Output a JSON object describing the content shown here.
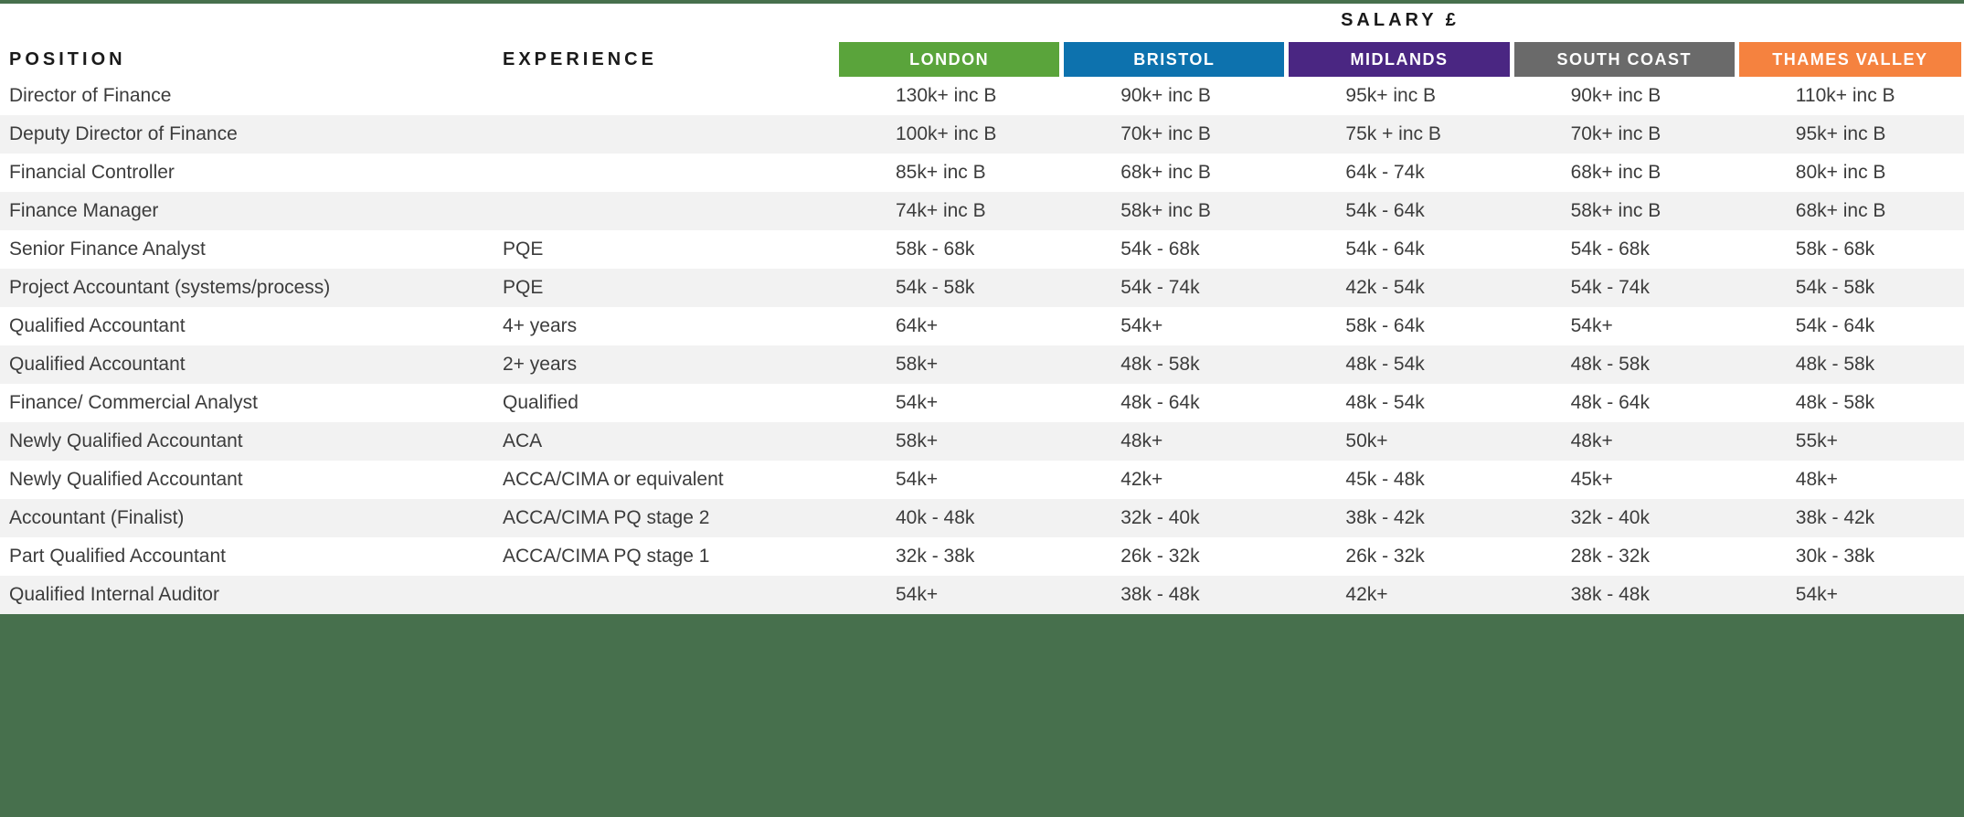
{
  "table": {
    "salary_header": "SALARY £",
    "position_header": "POSITION",
    "experience_header": "EXPERIENCE",
    "regions": [
      {
        "label": "LONDON",
        "color": "#5AA43B"
      },
      {
        "label": "BRISTOL",
        "color": "#0D72AE"
      },
      {
        "label": "MIDLANDS",
        "color": "#4A2682"
      },
      {
        "label": "SOUTH COAST",
        "color": "#6A6A6A"
      },
      {
        "label": "THAMES VALLEY",
        "color": "#F5823F"
      }
    ],
    "rows": [
      {
        "position": "Director of Finance",
        "experience": "",
        "values": [
          "130k+ inc B",
          "90k+ inc B",
          "95k+ inc B",
          "90k+ inc B",
          "110k+ inc B"
        ]
      },
      {
        "position": "Deputy Director of Finance",
        "experience": "",
        "values": [
          "100k+ inc B",
          "70k+ inc B",
          "75k + inc B",
          "70k+ inc B",
          "95k+ inc B"
        ]
      },
      {
        "position": "Financial Controller",
        "experience": "",
        "values": [
          "85k+ inc B",
          "68k+ inc B",
          "64k - 74k",
          "68k+ inc B",
          "80k+ inc B"
        ]
      },
      {
        "position": "Finance Manager",
        "experience": "",
        "values": [
          "74k+ inc B",
          "58k+ inc B",
          "54k - 64k",
          "58k+ inc B",
          "68k+ inc B"
        ]
      },
      {
        "position": "Senior Finance Analyst",
        "experience": "PQE",
        "values": [
          "58k - 68k",
          "54k - 68k",
          "54k - 64k",
          "54k - 68k",
          "58k - 68k"
        ]
      },
      {
        "position": "Project Accountant (systems/process)",
        "experience": "PQE",
        "values": [
          "54k - 58k",
          "54k - 74k",
          "42k - 54k",
          "54k - 74k",
          "54k - 58k"
        ]
      },
      {
        "position": "Qualified Accountant",
        "experience": "4+ years",
        "values": [
          "64k+",
          "54k+",
          "58k - 64k",
          "54k+",
          "54k - 64k"
        ]
      },
      {
        "position": "Qualified Accountant",
        "experience": "2+ years",
        "values": [
          "58k+",
          "48k - 58k",
          "48k - 54k",
          "48k - 58k",
          "48k - 58k"
        ]
      },
      {
        "position": "Finance/ Commercial Analyst",
        "experience": "Qualified",
        "values": [
          "54k+",
          "48k - 64k",
          "48k - 54k",
          "48k - 64k",
          "48k - 58k"
        ]
      },
      {
        "position": "Newly Qualified Accountant",
        "experience": "ACA",
        "values": [
          "58k+",
          "48k+",
          "50k+",
          "48k+",
          "55k+"
        ]
      },
      {
        "position": "Newly Qualified Accountant",
        "experience": "ACCA/CIMA or equivalent",
        "values": [
          "54k+",
          "42k+",
          "45k - 48k",
          "45k+",
          "48k+"
        ]
      },
      {
        "position": "Accountant (Finalist)",
        "experience": "ACCA/CIMA PQ stage 2",
        "values": [
          "40k - 48k",
          "32k - 40k",
          "38k - 42k",
          "32k - 40k",
          "38k - 42k"
        ]
      },
      {
        "position": "Part Qualified Accountant",
        "experience": "ACCA/CIMA PQ stage 1",
        "values": [
          "32k - 38k",
          "26k - 32k",
          "26k - 32k",
          "28k - 32k",
          "30k - 38k"
        ]
      },
      {
        "position": "Qualified Internal Auditor",
        "experience": "",
        "values": [
          "54k+",
          "38k - 48k",
          "42k+",
          "38k - 48k",
          "54k+"
        ]
      }
    ]
  },
  "colors": {
    "accent_green": "#47704D",
    "stripe_gray": "#F2F2F2",
    "text_dark": "#3C3C3C",
    "header_text": "#1A1A1A"
  }
}
